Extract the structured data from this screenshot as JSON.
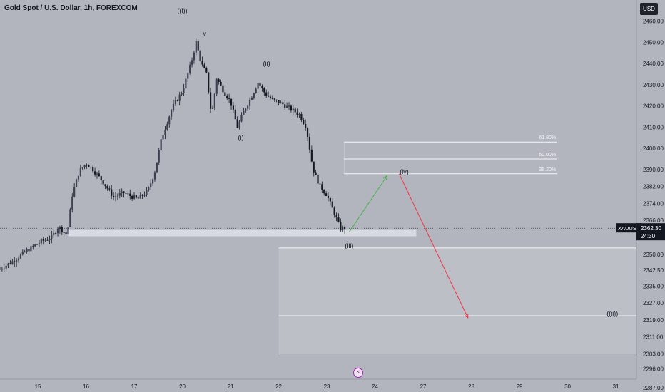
{
  "header": {
    "title": "Gold Spot / U.S. Dollar, 1h, FOREXCOM"
  },
  "currency_button": "USD",
  "flash_icon": "flash-icon",
  "colors": {
    "background": "#b2b5be",
    "candle_up": "#131722",
    "candle_down": "#131722",
    "zone": "#dde0e6",
    "fib_line": "#f5f6f8",
    "arrow_up": "#4caf50",
    "arrow_down": "#f23645",
    "price_tag": "#131722"
  },
  "chart_data": {
    "type": "candlestick",
    "symbol": "XAUUSD",
    "timeframe": "1h",
    "x_tick_labels": [
      "15",
      "16",
      "17",
      "20",
      "21",
      "22",
      "23",
      "24",
      "27",
      "28",
      "29",
      "30",
      "31"
    ],
    "y_tick_labels": [
      "2460.00",
      "2450.00",
      "2440.00",
      "2430.00",
      "2420.00",
      "2410.00",
      "2400.00",
      "2390.00",
      "2382.00",
      "2374.00",
      "2366.00",
      "2350.00",
      "2342.50",
      "2335.00",
      "2327.00",
      "2319.00",
      "2311.00",
      "2303.00",
      "2296.00",
      "2287.00"
    ],
    "ylim": [
      2285,
      2470
    ],
    "current_price": {
      "label": "XAUUSD",
      "value": "2362.30",
      "countdown": "24:30",
      "price": 2362.3
    },
    "close_path": [
      {
        "x": 0,
        "y": 2343
      },
      {
        "x": 4,
        "y": 2347
      },
      {
        "x": 8,
        "y": 2352
      },
      {
        "x": 12,
        "y": 2356
      },
      {
        "x": 15,
        "y": 2358
      },
      {
        "x": 17,
        "y": 2363
      },
      {
        "x": 19.5,
        "y": 2359
      },
      {
        "x": 21,
        "y": 2378
      },
      {
        "x": 23,
        "y": 2389
      },
      {
        "x": 25,
        "y": 2393
      },
      {
        "x": 27,
        "y": 2390
      },
      {
        "x": 30,
        "y": 2384
      },
      {
        "x": 33,
        "y": 2377
      },
      {
        "x": 36,
        "y": 2379
      },
      {
        "x": 40,
        "y": 2376
      },
      {
        "x": 43,
        "y": 2380
      },
      {
        "x": 45,
        "y": 2389
      },
      {
        "x": 47,
        "y": 2405
      },
      {
        "x": 50,
        "y": 2419
      },
      {
        "x": 53,
        "y": 2427
      },
      {
        "x": 55.5,
        "y": 2440
      },
      {
        "x": 57,
        "y": 2450
      },
      {
        "x": 58.5,
        "y": 2440
      },
      {
        "x": 60,
        "y": 2435
      },
      {
        "x": 61.5,
        "y": 2415
      },
      {
        "x": 63,
        "y": 2433
      },
      {
        "x": 65,
        "y": 2427
      },
      {
        "x": 67,
        "y": 2422
      },
      {
        "x": 69,
        "y": 2410
      },
      {
        "x": 71,
        "y": 2418
      },
      {
        "x": 73,
        "y": 2424
      },
      {
        "x": 75,
        "y": 2431
      },
      {
        "x": 77,
        "y": 2426
      },
      {
        "x": 79,
        "y": 2423
      },
      {
        "x": 82,
        "y": 2421
      },
      {
        "x": 85,
        "y": 2418
      },
      {
        "x": 87,
        "y": 2416
      },
      {
        "x": 89,
        "y": 2410
      },
      {
        "x": 91,
        "y": 2390
      },
      {
        "x": 93,
        "y": 2382
      },
      {
        "x": 95,
        "y": 2378
      },
      {
        "x": 97,
        "y": 2370
      },
      {
        "x": 99,
        "y": 2362
      },
      {
        "x": 100.4,
        "y": 2362.3
      }
    ],
    "support_zone": {
      "x_start": 20,
      "x_end": 121,
      "y_low": 2358.5,
      "y_high": 2361.5
    },
    "target_box": {
      "x_start": 81,
      "y_low": 2303,
      "y_high": 2353
    },
    "target_line": 2321,
    "fib_levels": [
      {
        "label": "61.80%",
        "price": 2403
      },
      {
        "label": "50.00%",
        "price": 2395
      },
      {
        "label": "38.20%",
        "price": 2388
      }
    ],
    "fib_box": {
      "x_start": 100,
      "x_end": 162
    },
    "wave_labels": [
      {
        "text": "((i))",
        "x": 53,
        "y": 2464
      },
      {
        "text": "v",
        "x": 59.5,
        "y": 2453
      },
      {
        "text": "(ii)",
        "x": 77.5,
        "y": 2439
      },
      {
        "text": "(i)",
        "x": 70,
        "y": 2404
      },
      {
        "text": "(iv)",
        "x": 117.5,
        "y": 2388
      },
      {
        "text": "(iii)",
        "x": 101.5,
        "y": 2353
      },
      {
        "text": "((ii))",
        "x": 178,
        "y": 2321
      }
    ],
    "arrows": [
      {
        "name": "wave-iv-arrow",
        "from": {
          "x": 101.5,
          "y": 2360.5
        },
        "to": {
          "x": 112.5,
          "y": 2387
        }
      },
      {
        "name": "wave-ii-target-arrow",
        "from": {
          "x": 116,
          "y": 2388
        },
        "to": {
          "x": 136,
          "y": 2320
        }
      }
    ]
  }
}
